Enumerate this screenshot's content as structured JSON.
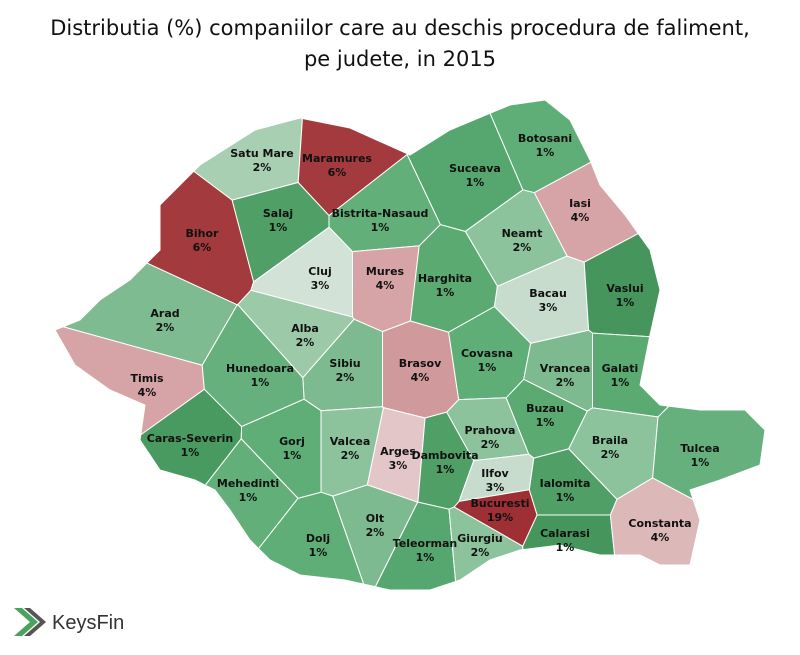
{
  "title": [
    "Distributia (%) companiilor care au deschis procedura de faliment,",
    "pe judete, in 2015"
  ],
  "logo": "KeysFin",
  "regions": [
    {
      "name": "Satu Mare",
      "value": 2,
      "value_label": "2%",
      "color": "#a9cfb2"
    },
    {
      "name": "Maramures",
      "value": 6,
      "value_label": "6%",
      "color": "#a33b3e"
    },
    {
      "name": "Botosani",
      "value": 1,
      "value_label": "1%",
      "color": "#5fae78"
    },
    {
      "name": "Suceava",
      "value": 1,
      "value_label": "1%",
      "color": "#55a76f"
    },
    {
      "name": "Bihor",
      "value": 6,
      "value_label": "6%",
      "color": "#a33b3e"
    },
    {
      "name": "Salaj",
      "value": 1,
      "value_label": "1%",
      "color": "#4f9f67"
    },
    {
      "name": "Bistrita-Nasaud",
      "value": 1,
      "value_label": "1%",
      "color": "#62af7a"
    },
    {
      "name": "Iasi",
      "value": 4,
      "value_label": "4%",
      "color": "#d6a4a6"
    },
    {
      "name": "Neamt",
      "value": 2,
      "value_label": "2%",
      "color": "#8cc39c"
    },
    {
      "name": "Cluj",
      "value": 3,
      "value_label": "3%",
      "color": "#d3e2d6"
    },
    {
      "name": "Mures",
      "value": 4,
      "value_label": "4%",
      "color": "#d6a4a6"
    },
    {
      "name": "Harghita",
      "value": 1,
      "value_label": "1%",
      "color": "#5aaa72"
    },
    {
      "name": "Bacau",
      "value": 3,
      "value_label": "3%",
      "color": "#c8dccd"
    },
    {
      "name": "Vaslui",
      "value": 1,
      "value_label": "1%",
      "color": "#45955c"
    },
    {
      "name": "Arad",
      "value": 2,
      "value_label": "2%",
      "color": "#7fbb91"
    },
    {
      "name": "Alba",
      "value": 2,
      "value_label": "2%",
      "color": "#9ccaa9"
    },
    {
      "name": "Sibiu",
      "value": 2,
      "value_label": "2%",
      "color": "#7dba8f"
    },
    {
      "name": "Brasov",
      "value": 4,
      "value_label": "4%",
      "color": "#d09a9c"
    },
    {
      "name": "Covasna",
      "value": 1,
      "value_label": "1%",
      "color": "#5fae78"
    },
    {
      "name": "Vrancea",
      "value": 2,
      "value_label": "2%",
      "color": "#7dba8f"
    },
    {
      "name": "Galati",
      "value": 1,
      "value_label": "1%",
      "color": "#5aaa72"
    },
    {
      "name": "Timis",
      "value": 4,
      "value_label": "4%",
      "color": "#d6a4a6"
    },
    {
      "name": "Hunedoara",
      "value": 1,
      "value_label": "1%",
      "color": "#65b07c"
    },
    {
      "name": "Caras-Severin",
      "value": 1,
      "value_label": "1%",
      "color": "#489a60"
    },
    {
      "name": "Gorj",
      "value": 1,
      "value_label": "1%",
      "color": "#5fae78"
    },
    {
      "name": "Valcea",
      "value": 2,
      "value_label": "2%",
      "color": "#8cc39c"
    },
    {
      "name": "Arges",
      "value": 3,
      "value_label": "3%",
      "color": "#e3c7c8"
    },
    {
      "name": "Dambovita",
      "value": 1,
      "value_label": "1%",
      "color": "#4f9f67"
    },
    {
      "name": "Prahova",
      "value": 2,
      "value_label": "2%",
      "color": "#8cc39c"
    },
    {
      "name": "Buzau",
      "value": 1,
      "value_label": "1%",
      "color": "#5aaa72"
    },
    {
      "name": "Braila",
      "value": 2,
      "value_label": "2%",
      "color": "#8cc39c"
    },
    {
      "name": "Tulcea",
      "value": 1,
      "value_label": "1%",
      "color": "#65b07c"
    },
    {
      "name": "Mehedinti",
      "value": 1,
      "value_label": "1%",
      "color": "#62af7a"
    },
    {
      "name": "Ilfov",
      "value": 3,
      "value_label": "3%",
      "color": "#c8dccd"
    },
    {
      "name": "Bucuresti",
      "value": 19,
      "value_label": "19%",
      "color": "#9e2f35"
    },
    {
      "name": "Ialomita",
      "value": 1,
      "value_label": "1%",
      "color": "#4f9f67"
    },
    {
      "name": "Dolj",
      "value": 1,
      "value_label": "1%",
      "color": "#5fae78"
    },
    {
      "name": "Olt",
      "value": 2,
      "value_label": "2%",
      "color": "#7dba8f"
    },
    {
      "name": "Teleorman",
      "value": 1,
      "value_label": "1%",
      "color": "#55a76f"
    },
    {
      "name": "Giurgiu",
      "value": 2,
      "value_label": "2%",
      "color": "#8cc39c"
    },
    {
      "name": "Calarasi",
      "value": 1,
      "value_label": "1%",
      "color": "#45955c"
    },
    {
      "name": "Constanta",
      "value": 4,
      "value_label": "4%",
      "color": "#dcb8b9"
    }
  ]
}
